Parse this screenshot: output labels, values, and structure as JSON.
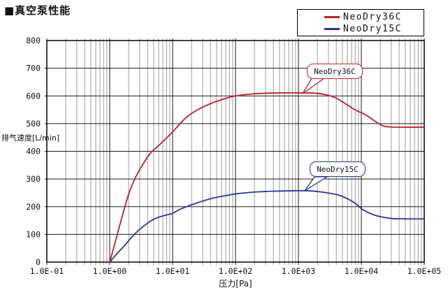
{
  "chart_data": {
    "type": "line",
    "title": "■真空泵性能",
    "xlabel": "压力[Pa]",
    "ylabel": "排气速度[L/min]",
    "x_scale": "log",
    "x_range_pa": [
      0.1,
      100000
    ],
    "ylim": [
      0,
      800
    ],
    "x_tick_labels": [
      "1.0E-01",
      "1.0E+00",
      "1.0E+01",
      "1.0E+02",
      "1.0E+03",
      "1.0E+04",
      "1.0E+05"
    ],
    "y_ticks": [
      0,
      100,
      200,
      300,
      400,
      500,
      600,
      700,
      800
    ],
    "grid": {
      "major_color": "#1a1a1a",
      "minor_color": "#9c9c9c",
      "border_color": "#000000"
    },
    "legend": {
      "position": "top-right"
    },
    "annotations": [
      {
        "label": "NeoDry36C"
      },
      {
        "label": "NeoDry15C"
      }
    ],
    "series": [
      {
        "name": "NeoDry36C",
        "color": "#bb2227",
        "points_pa_lmin": [
          [
            1,
            0
          ],
          [
            1.25,
            80
          ],
          [
            1.6,
            170
          ],
          [
            2,
            245
          ],
          [
            2.5,
            300
          ],
          [
            3.2,
            345
          ],
          [
            4.5,
            395
          ],
          [
            6.3,
            425
          ],
          [
            10,
            470
          ],
          [
            16,
            520
          ],
          [
            25,
            550
          ],
          [
            40,
            572
          ],
          [
            63,
            588
          ],
          [
            100,
            600
          ],
          [
            180,
            607
          ],
          [
            320,
            610
          ],
          [
            560,
            611
          ],
          [
            1000,
            611
          ],
          [
            1800,
            610
          ],
          [
            2800,
            604
          ],
          [
            4000,
            592
          ],
          [
            5600,
            572
          ],
          [
            7900,
            550
          ],
          [
            11000,
            535
          ],
          [
            14000,
            520
          ],
          [
            18000,
            503
          ],
          [
            22000,
            492
          ],
          [
            28000,
            488
          ],
          [
            40000,
            487
          ],
          [
            100000,
            487
          ]
        ]
      },
      {
        "name": "NeoDry15C",
        "color": "#2b3699",
        "points_pa_lmin": [
          [
            1,
            0
          ],
          [
            1.3,
            30
          ],
          [
            1.7,
            58
          ],
          [
            2.2,
            88
          ],
          [
            2.8,
            112
          ],
          [
            3.6,
            133
          ],
          [
            4.6,
            150
          ],
          [
            6,
            162
          ],
          [
            8,
            170
          ],
          [
            10,
            176
          ],
          [
            13,
            190
          ],
          [
            20,
            207
          ],
          [
            32,
            222
          ],
          [
            50,
            234
          ],
          [
            79,
            242
          ],
          [
            100,
            246
          ],
          [
            160,
            251
          ],
          [
            250,
            254
          ],
          [
            400,
            256
          ],
          [
            630,
            257
          ],
          [
            1000,
            258
          ],
          [
            1600,
            257
          ],
          [
            2500,
            252
          ],
          [
            4000,
            244
          ],
          [
            5600,
            232
          ],
          [
            7900,
            213
          ],
          [
            10000,
            193
          ],
          [
            12600,
            180
          ],
          [
            16000,
            170
          ],
          [
            20000,
            164
          ],
          [
            25000,
            160
          ],
          [
            32000,
            157
          ],
          [
            50000,
            156
          ],
          [
            100000,
            156
          ]
        ]
      }
    ]
  }
}
